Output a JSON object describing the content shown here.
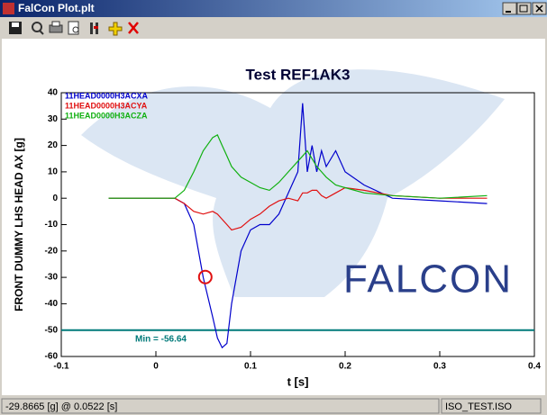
{
  "window": {
    "title": "FalCon Plot.plt"
  },
  "status_bar": {
    "left": "-29.8665 [g] @ 0.0522 [s]",
    "right": "ISO_TEST.ISO"
  },
  "chart_data": {
    "type": "line",
    "title": "Test REF1AK3",
    "x_label": "t  [s]",
    "y_label": "FRONT DUMMY LHS HEAD AX  [g]",
    "logo": "FALCON",
    "xlim": [
      -0.1,
      0.4
    ],
    "xticks": [
      -0.1,
      0,
      0.1,
      0.2,
      0.3,
      0.4
    ],
    "ylim": [
      -60,
      40
    ],
    "yticks": [
      -60,
      -50,
      -40,
      -30,
      -20,
      -10,
      0,
      10,
      20,
      30,
      40
    ],
    "x": [
      -0.05,
      0,
      0.02,
      0.03,
      0.04,
      0.05,
      0.06,
      0.065,
      0.07,
      0.075,
      0.08,
      0.09,
      0.1,
      0.11,
      0.12,
      0.13,
      0.14,
      0.15,
      0.155,
      0.16,
      0.165,
      0.17,
      0.175,
      0.18,
      0.19,
      0.2,
      0.22,
      0.25,
      0.3,
      0.35
    ],
    "series": [
      {
        "name": "11HEAD0000H3ACXA",
        "color": "#0000cc",
        "values": [
          0,
          0,
          0,
          -2,
          -10,
          -30,
          -45,
          -53,
          -56.64,
          -55,
          -40,
          -20,
          -12,
          -10,
          -10,
          -6,
          2,
          10,
          36,
          10,
          20,
          10,
          18,
          12,
          18,
          10,
          5,
          0,
          -1,
          -2
        ]
      },
      {
        "name": "11HEAD0000H3ACYA",
        "color": "#e01010",
        "values": [
          0,
          0,
          0,
          -2,
          -5,
          -6,
          -5,
          -6,
          -8,
          -10,
          -12,
          -11,
          -8,
          -6,
          -3,
          -1,
          0,
          -1,
          2,
          2,
          3,
          3,
          1,
          0,
          2,
          4,
          3,
          1,
          0,
          0
        ]
      },
      {
        "name": "11HEAD0000H3ACZA",
        "color": "#10b010",
        "values": [
          0,
          0,
          0,
          3,
          10,
          18,
          23,
          24,
          20,
          16,
          12,
          8,
          6,
          4,
          3,
          6,
          10,
          14,
          16,
          18,
          15,
          12,
          10,
          8,
          5,
          4,
          2,
          1,
          0,
          1
        ]
      }
    ],
    "min_line": {
      "value": -50,
      "label": "Min = -56.64",
      "color": "#007a7a"
    },
    "cursor": {
      "x": 0.0522,
      "y": -29.8665,
      "color": "#e01010"
    }
  }
}
